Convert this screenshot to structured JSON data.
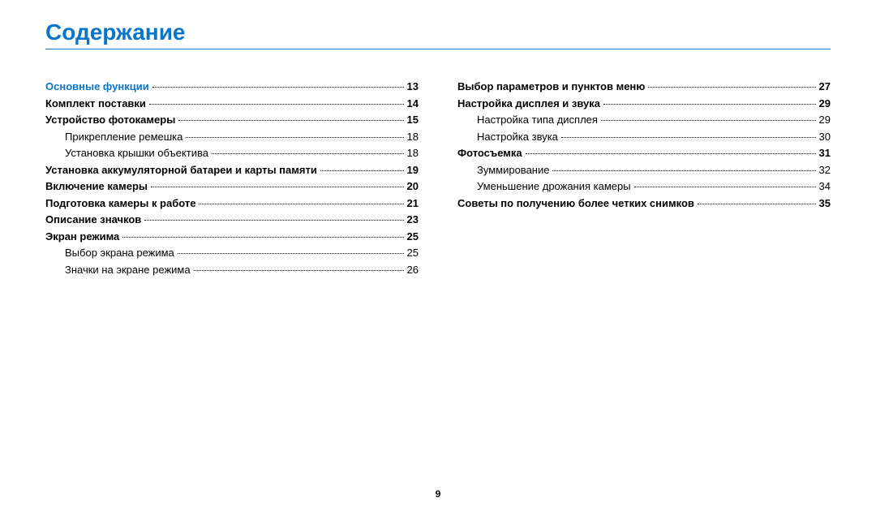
{
  "title": "Содержание",
  "page_number": "9",
  "colors": {
    "accent": "#0a75c9",
    "text": "#000000",
    "background": "#ffffff"
  },
  "typography": {
    "title_fontsize_pt": 21,
    "body_fontsize_pt": 10,
    "font_family": "Arial"
  },
  "left": [
    {
      "kind": "section",
      "label": "Основные функции",
      "page": "13"
    },
    {
      "kind": "bold",
      "label": "Комплект поставки",
      "page": "14"
    },
    {
      "kind": "bold",
      "label": "Устройство фотокамеры",
      "page": "15"
    },
    {
      "kind": "sub",
      "label": "Прикрепление ремешка",
      "page": "18"
    },
    {
      "kind": "sub",
      "label": "Установка крышки объектива",
      "page": "18"
    },
    {
      "kind": "bold",
      "label": "Установка аккумуляторной батареи и карты памяти",
      "page": "19"
    },
    {
      "kind": "bold",
      "label": "Включение камеры",
      "page": "20"
    },
    {
      "kind": "bold",
      "label": "Подготовка камеры к работе",
      "page": "21"
    },
    {
      "kind": "bold",
      "label": "Описание значков",
      "page": "23"
    },
    {
      "kind": "bold",
      "label": "Экран режима",
      "page": "25"
    },
    {
      "kind": "sub",
      "label": "Выбор экрана режима",
      "page": "25"
    },
    {
      "kind": "sub",
      "label": "Значки на экране режима",
      "page": "26"
    }
  ],
  "right": [
    {
      "kind": "bold",
      "label": "Выбор параметров и пунктов меню",
      "page": "27"
    },
    {
      "kind": "bold",
      "label": "Настройка дисплея и звука",
      "page": "29"
    },
    {
      "kind": "sub",
      "label": "Настройка типа дисплея",
      "page": "29"
    },
    {
      "kind": "sub",
      "label": "Настройка звука",
      "page": "30"
    },
    {
      "kind": "bold",
      "label": "Фотосъемка",
      "page": "31"
    },
    {
      "kind": "sub",
      "label": "Зуммирование",
      "page": "32"
    },
    {
      "kind": "sub",
      "label": "Уменьшение дрожания камеры",
      "page": "34"
    },
    {
      "kind": "bold",
      "label": "Советы по получению более четких снимков",
      "page": "35"
    }
  ]
}
